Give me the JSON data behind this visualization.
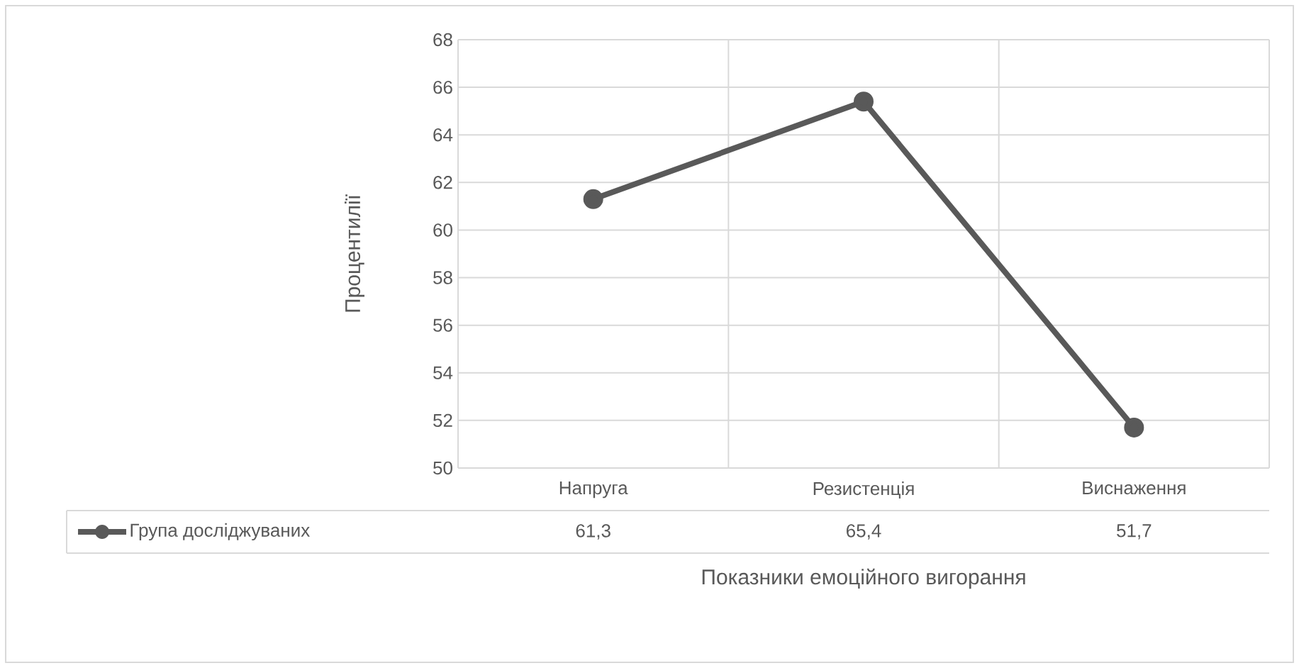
{
  "chart_data": {
    "type": "line",
    "xlabel": "Показники емоційного вигорання",
    "ylabel": "Процентилії",
    "categories": [
      "Напруга",
      "Резистенція",
      "Виснаження"
    ],
    "series": [
      {
        "name": "Група досліджуваних",
        "color": "#595959",
        "values": [
          61.3,
          65.4,
          51.7
        ],
        "value_labels": [
          "61,3",
          "65,4",
          "51,7"
        ]
      }
    ],
    "ylim": [
      50,
      68
    ],
    "yticks": [
      50,
      52,
      54,
      56,
      58,
      60,
      62,
      64,
      66,
      68
    ],
    "grid": true,
    "legend": "bottom",
    "marker": "circle",
    "line_style": "solid"
  }
}
